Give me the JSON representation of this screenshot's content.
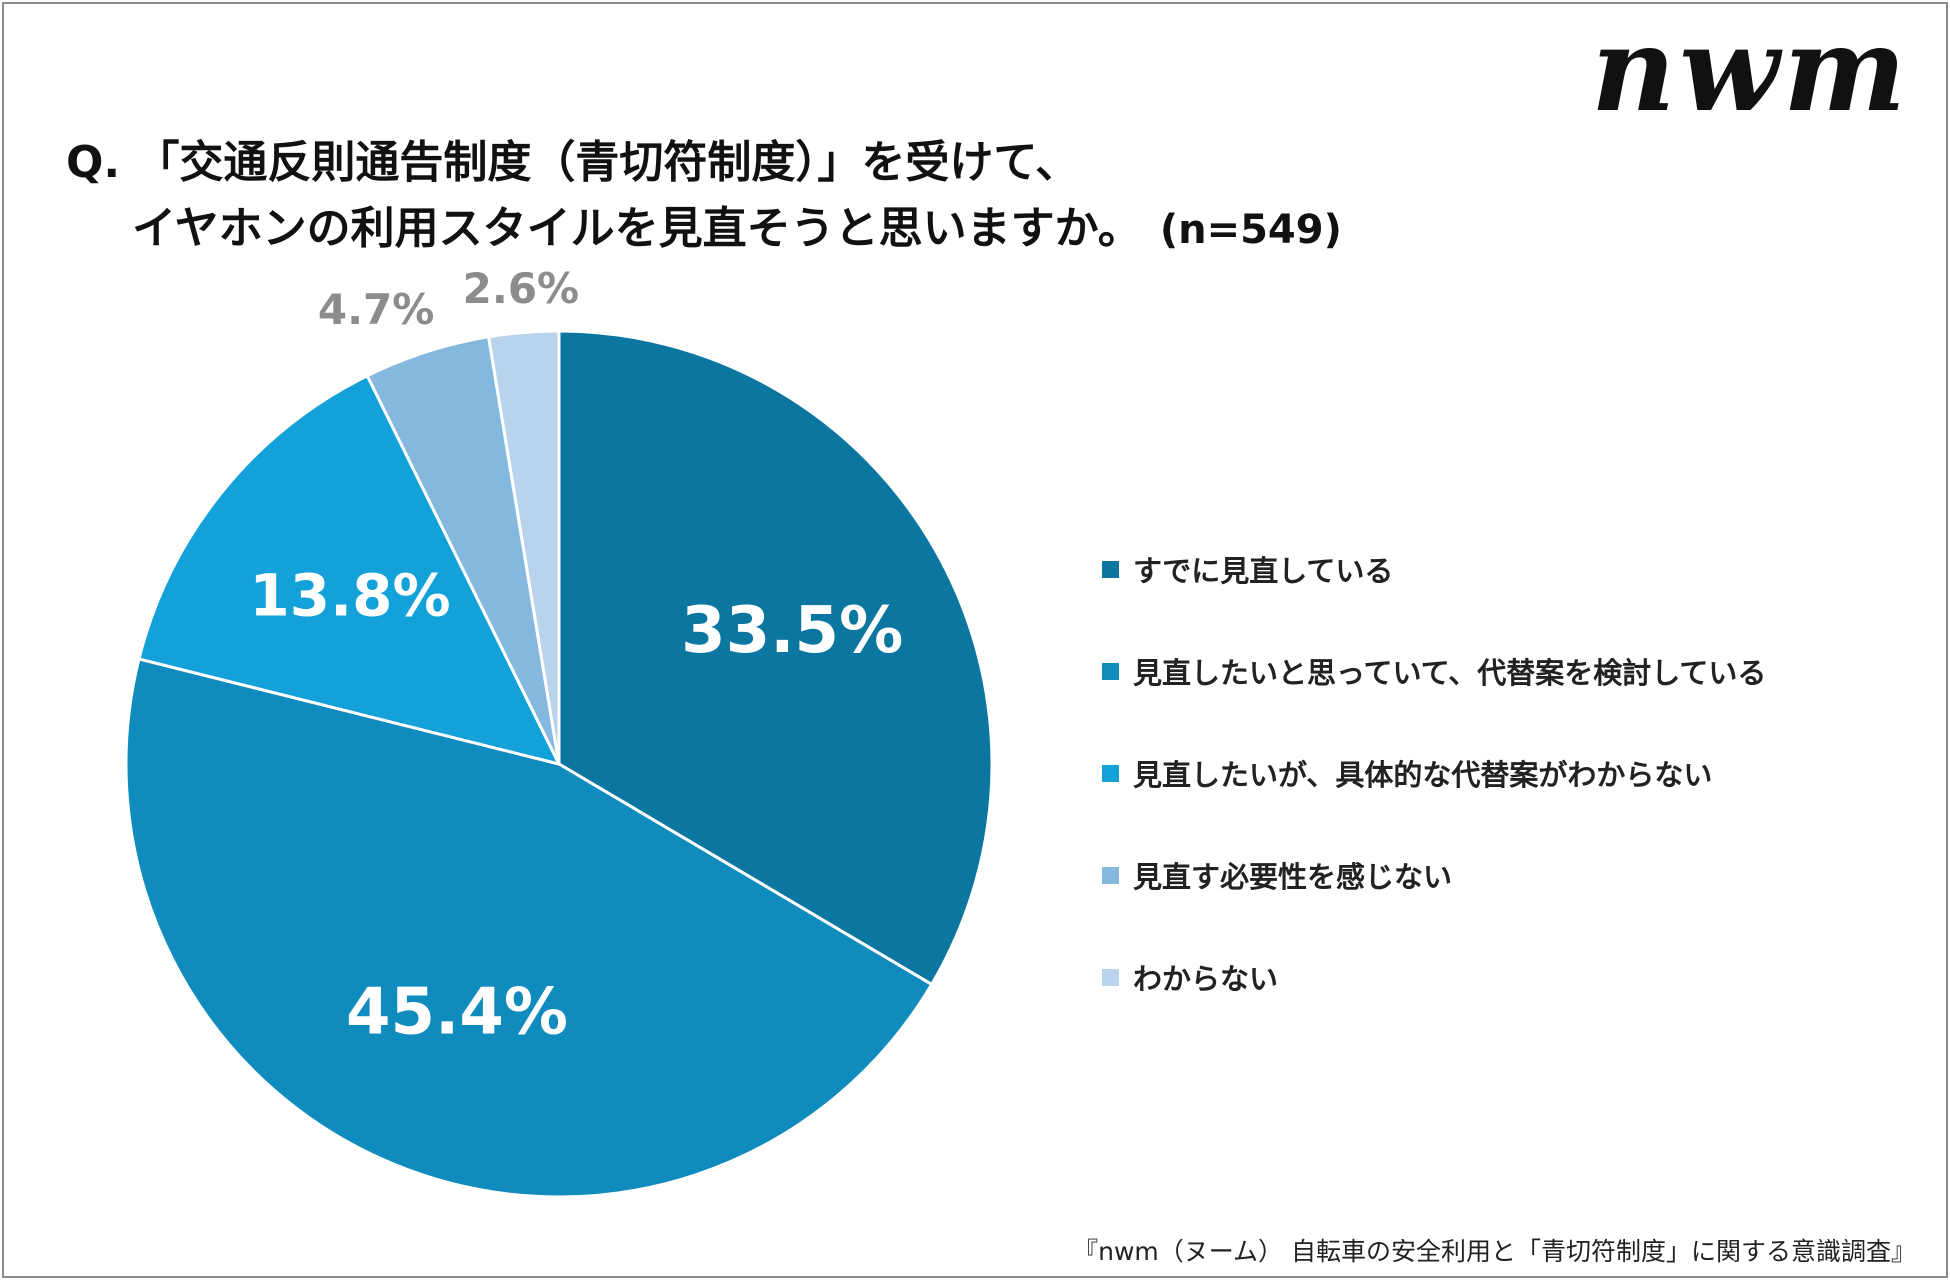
{
  "brand": {
    "logo_text": "nwm"
  },
  "header": {
    "title_line1": "Q. 「交通反則通告制度（青切符制度）」を受けて、",
    "title_line2": "イヤホンの利用スタイルを見直そうと思いますか。",
    "sample_size": "(n=549)"
  },
  "chart_data": {
    "type": "pie",
    "title": "Q. 「交通反則通告制度（青切符制度）」を受けて、イヤホンの利用スタイルを見直そうと思いますか。",
    "subtitle": "(n=549)",
    "start": "12 o'clock, clockwise",
    "legend_position": "right",
    "slices": [
      {
        "label": "すでに見直している",
        "value": 33.5,
        "display": "33.5%",
        "color": "#0b76a0",
        "label_inside": true
      },
      {
        "label": "見直したいと思っていて、代替案を検討している",
        "value": 45.4,
        "display": "45.4%",
        "color": "#0f8bbd",
        "label_inside": true
      },
      {
        "label": "見直したいが、具体的な代替案がわからない",
        "value": 13.8,
        "display": "13.8%",
        "color": "#12a1d8",
        "label_inside": true
      },
      {
        "label": "見直す必要性を感じない",
        "value": 4.7,
        "display": "4.7%",
        "color": "#84b8df",
        "label_inside": false
      },
      {
        "label": "わからない",
        "value": 2.6,
        "display": "2.6%",
        "color": "#b9d3ec",
        "label_inside": false
      }
    ]
  },
  "footer": {
    "source": "『nwm（ヌーム） 自転車の安全利用と「青切符制度」に関する意識調査』"
  }
}
